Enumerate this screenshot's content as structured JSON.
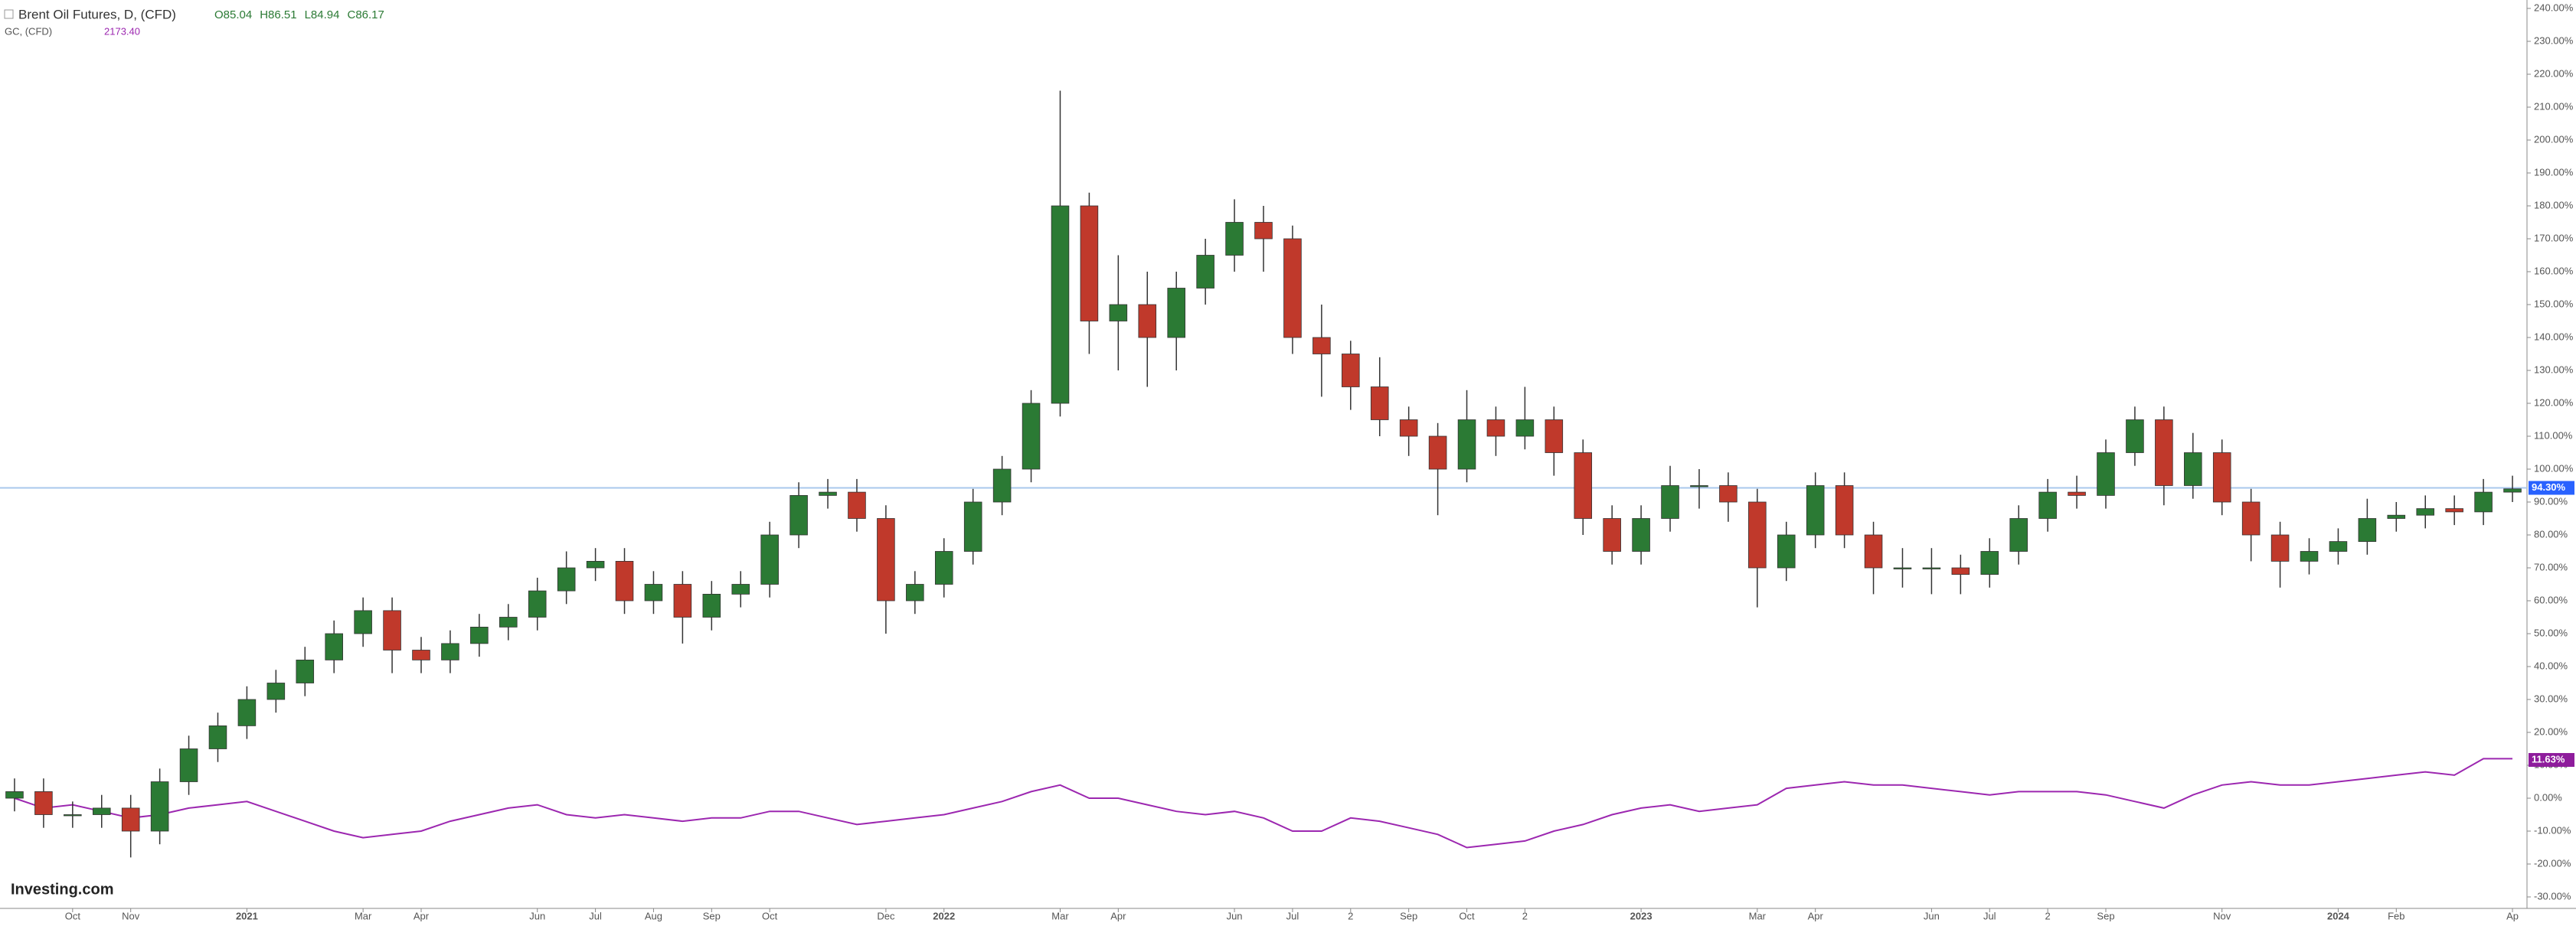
{
  "chart_data": {
    "type": "candlestick",
    "title": "Brent Oil Futures, D, (CFD)",
    "ohlc_labels": [
      "O85.04",
      "H86.51",
      "L84.94",
      "C86.17"
    ],
    "source": "Investing.com",
    "up_color": "#2b7a34",
    "down_color": "#c0392b",
    "categories": [
      null,
      null,
      "Oct",
      null,
      "Nov",
      null,
      null,
      null,
      "2021",
      null,
      null,
      null,
      "Mar",
      null,
      "Apr",
      null,
      null,
      null,
      "Jun",
      null,
      "Jul",
      null,
      "Aug",
      null,
      "Sep",
      null,
      "Oct",
      null,
      null,
      null,
      "Dec",
      null,
      "2022",
      null,
      null,
      null,
      "Mar",
      null,
      "Apr",
      null,
      null,
      null,
      "Jun",
      null,
      "Jul",
      null,
      "2",
      null,
      "Sep",
      null,
      "Oct",
      null,
      "2",
      null,
      null,
      null,
      "2023",
      null,
      null,
      null,
      "Mar",
      null,
      "Apr",
      null,
      null,
      null,
      "Jun",
      null,
      "Jul",
      null,
      "2",
      null,
      "Sep",
      null,
      null,
      null,
      "Nov",
      null,
      null,
      null,
      "2024",
      null,
      "Feb",
      null,
      null,
      null,
      "Ap"
    ],
    "open": [
      0,
      2,
      -5,
      -5,
      -3,
      -10,
      5,
      15,
      22,
      30,
      35,
      42,
      50,
      57,
      45,
      42,
      47,
      52,
      55,
      63,
      70,
      72,
      60,
      65,
      55,
      62,
      65,
      80,
      92,
      93,
      85,
      60,
      65,
      75,
      90,
      100,
      120,
      180,
      145,
      150,
      140,
      155,
      165,
      175,
      170,
      140,
      135,
      125,
      115,
      110,
      100,
      115,
      110,
      115,
      105,
      85,
      75,
      85,
      95,
      95,
      90,
      70,
      80,
      95,
      80,
      70,
      70,
      70,
      68,
      75,
      85,
      93,
      92,
      105,
      115,
      95,
      105,
      90,
      80,
      72,
      75,
      78,
      85,
      86,
      88,
      87,
      93
    ],
    "high": [
      6,
      6,
      -1,
      1,
      1,
      9,
      19,
      26,
      34,
      39,
      46,
      54,
      61,
      61,
      49,
      51,
      56,
      59,
      67,
      75,
      76,
      76,
      69,
      69,
      66,
      69,
      84,
      96,
      97,
      97,
      89,
      69,
      79,
      94,
      104,
      124,
      215,
      184,
      165,
      160,
      160,
      170,
      182,
      180,
      174,
      150,
      139,
      134,
      119,
      114,
      124,
      119,
      125,
      119,
      109,
      89,
      89,
      101,
      100,
      99,
      94,
      84,
      99,
      99,
      84,
      76,
      76,
      74,
      79,
      89,
      97,
      98,
      109,
      119,
      119,
      111,
      109,
      94,
      84,
      79,
      82,
      91,
      90,
      92,
      92,
      97,
      98
    ],
    "low": [
      -4,
      -9,
      -9,
      -9,
      -18,
      -14,
      1,
      11,
      18,
      26,
      31,
      38,
      46,
      38,
      38,
      38,
      43,
      48,
      51,
      59,
      66,
      56,
      56,
      47,
      51,
      58,
      61,
      76,
      88,
      81,
      50,
      56,
      61,
      71,
      86,
      96,
      116,
      135,
      130,
      125,
      130,
      150,
      160,
      160,
      135,
      122,
      118,
      110,
      104,
      86,
      96,
      104,
      106,
      98,
      80,
      71,
      71,
      81,
      88,
      84,
      58,
      66,
      76,
      76,
      62,
      64,
      62,
      62,
      64,
      71,
      81,
      88,
      88,
      101,
      89,
      91,
      86,
      72,
      64,
      68,
      71,
      74,
      81,
      82,
      83,
      83,
      90
    ],
    "close": [
      2,
      -5,
      -5,
      -3,
      -10,
      5,
      15,
      22,
      30,
      35,
      42,
      50,
      57,
      45,
      42,
      47,
      52,
      55,
      63,
      70,
      72,
      60,
      65,
      55,
      62,
      65,
      80,
      92,
      93,
      85,
      60,
      65,
      75,
      90,
      100,
      120,
      180,
      145,
      150,
      140,
      155,
      165,
      175,
      170,
      140,
      135,
      125,
      115,
      110,
      100,
      115,
      110,
      115,
      105,
      85,
      75,
      85,
      95,
      95,
      90,
      70,
      80,
      95,
      80,
      70,
      70,
      70,
      68,
      75,
      85,
      93,
      92,
      105,
      115,
      95,
      105,
      90,
      80,
      72,
      75,
      78,
      85,
      86,
      88,
      87,
      93,
      94
    ],
    "series": [
      {
        "name": "GC, (CFD)",
        "color": "#9c27b0",
        "last_label": "2173.40",
        "values": [
          0,
          -3,
          -2,
          -4,
          -6,
          -5,
          -3,
          -2,
          -1,
          -4,
          -7,
          -10,
          -12,
          -11,
          -10,
          -7,
          -5,
          -3,
          -2,
          -5,
          -6,
          -5,
          -6,
          -7,
          -6,
          -6,
          -4,
          -4,
          -6,
          -8,
          -7,
          -6,
          -5,
          -3,
          -1,
          2,
          4,
          0,
          0,
          -2,
          -4,
          -5,
          -4,
          -6,
          -10,
          -10,
          -6,
          -7,
          -9,
          -11,
          -15,
          -14,
          -13,
          -10,
          -8,
          -5,
          -3,
          -2,
          -4,
          -3,
          -2,
          3,
          4,
          5,
          4,
          4,
          3,
          2,
          1,
          2,
          2,
          2,
          1,
          -1,
          -3,
          1,
          4,
          5,
          4,
          4,
          5,
          6,
          7,
          8,
          7,
          12,
          12
        ]
      }
    ],
    "markers": [
      {
        "value": 94.3,
        "label": "94.30%",
        "color": "#2962ff",
        "line_color": "#a9c8ec"
      },
      {
        "value": 11.63,
        "label": "11.63%",
        "color": "#8e1c9c"
      }
    ],
    "ylim": [
      -30,
      240
    ],
    "yticks": [
      {
        "value": 240,
        "label": "240.00%"
      },
      {
        "value": 230,
        "label": "230.00%"
      },
      {
        "value": 220,
        "label": "220.00%"
      },
      {
        "value": 210,
        "label": "210.00%"
      },
      {
        "value": 200,
        "label": "200.00%"
      },
      {
        "value": 190,
        "label": "190.00%"
      },
      {
        "value": 180,
        "label": "180.00%"
      },
      {
        "value": 170,
        "label": "170.00%"
      },
      {
        "value": 160,
        "label": "160.00%"
      },
      {
        "value": 150,
        "label": "150.00%"
      },
      {
        "value": 140,
        "label": "140.00%"
      },
      {
        "value": 130,
        "label": "130.00%"
      },
      {
        "value": 120,
        "label": "120.00%"
      },
      {
        "value": 110,
        "label": "110.00%"
      },
      {
        "value": 100,
        "label": "100.00%"
      },
      {
        "value": 90,
        "label": "90.00%"
      },
      {
        "value": 80,
        "label": "80.00%"
      },
      {
        "value": 70,
        "label": "70.00%"
      },
      {
        "value": 60,
        "label": "60.00%"
      },
      {
        "value": 50,
        "label": "50.00%"
      },
      {
        "value": 40,
        "label": "40.00%"
      },
      {
        "value": 30,
        "label": "30.00%"
      },
      {
        "value": 20,
        "label": "20.00%"
      },
      {
        "value": 10,
        "label": "10.00%"
      },
      {
        "value": 0,
        "label": "0.00%"
      },
      {
        "value": -10,
        "label": "-10.00%"
      },
      {
        "value": -20,
        "label": "-20.00%"
      },
      {
        "value": -30,
        "label": "-30.00%"
      }
    ],
    "grid": false
  }
}
